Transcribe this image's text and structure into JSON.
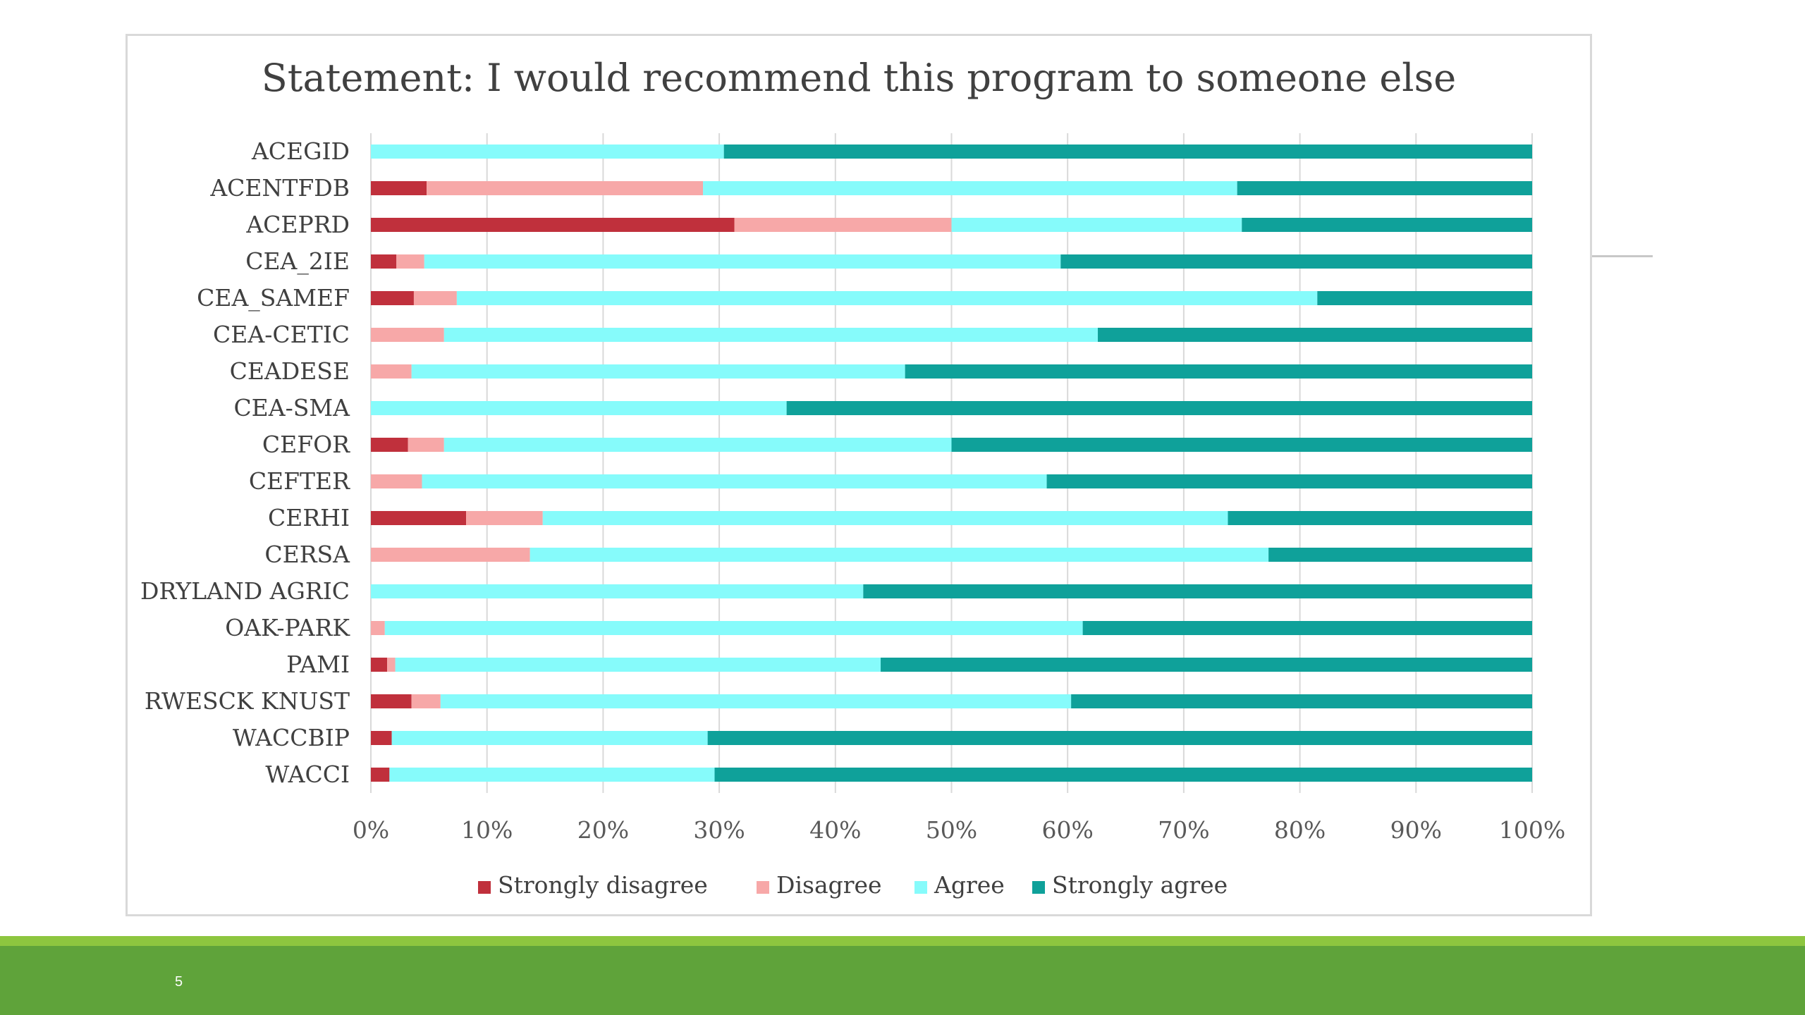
{
  "slide": {
    "number": "5"
  },
  "colors": {
    "strongly_disagree": "#c0303c",
    "disagree": "#f7a8a8",
    "agree": "#86fbfb",
    "strongly_agree": "#0fa19a",
    "footer_green": "#5fa33a",
    "footer_light_green": "#8dc63f"
  },
  "chart_data": {
    "type": "bar",
    "orientation": "horizontal",
    "stacked": "percent",
    "title": "Statement: I would recommend this program to someone else",
    "categories": [
      "ACEGID",
      "ACENTFDB",
      "ACEPRD",
      "CEA_2IE",
      "CEA_SAMEF",
      "CEA-CETIC",
      "CEADESE",
      "CEA-SMA",
      "CEFOR",
      "CEFTER",
      "CERHI",
      "CERSA",
      "DRYLAND AGRIC",
      "OAK-PARK",
      "PAMI",
      "RWESCK KNUST",
      "WACCBIP",
      "WACCI"
    ],
    "series": [
      {
        "name": "Strongly disagree",
        "values": [
          0,
          4.8,
          31.3,
          2.2,
          3.7,
          0,
          0,
          0,
          3.2,
          0,
          8.2,
          0,
          0,
          0,
          1.4,
          3.5,
          1.8,
          1.6
        ]
      },
      {
        "name": "Disagree",
        "values": [
          0,
          23.8,
          18.7,
          2.4,
          3.7,
          6.3,
          3.5,
          0,
          3.1,
          4.4,
          6.6,
          13.7,
          0,
          1.2,
          0.7,
          2.5,
          0,
          0
        ]
      },
      {
        "name": "Agree",
        "values": [
          30.4,
          46.0,
          25.0,
          54.8,
          74.1,
          56.3,
          42.5,
          35.8,
          43.7,
          53.8,
          59.0,
          63.6,
          42.4,
          60.1,
          41.8,
          54.3,
          27.2,
          28.0
        ]
      },
      {
        "name": "Strongly agree",
        "values": [
          69.6,
          25.4,
          25.0,
          40.6,
          18.5,
          37.4,
          54.0,
          64.2,
          50.0,
          41.8,
          26.2,
          22.7,
          57.6,
          38.7,
          56.1,
          39.7,
          71.0,
          70.4
        ]
      }
    ],
    "x_ticks": [
      "0%",
      "10%",
      "20%",
      "30%",
      "40%",
      "50%",
      "60%",
      "70%",
      "80%",
      "90%",
      "100%"
    ],
    "xlim": [
      0,
      100
    ],
    "grid": true,
    "legend": "bottom"
  }
}
